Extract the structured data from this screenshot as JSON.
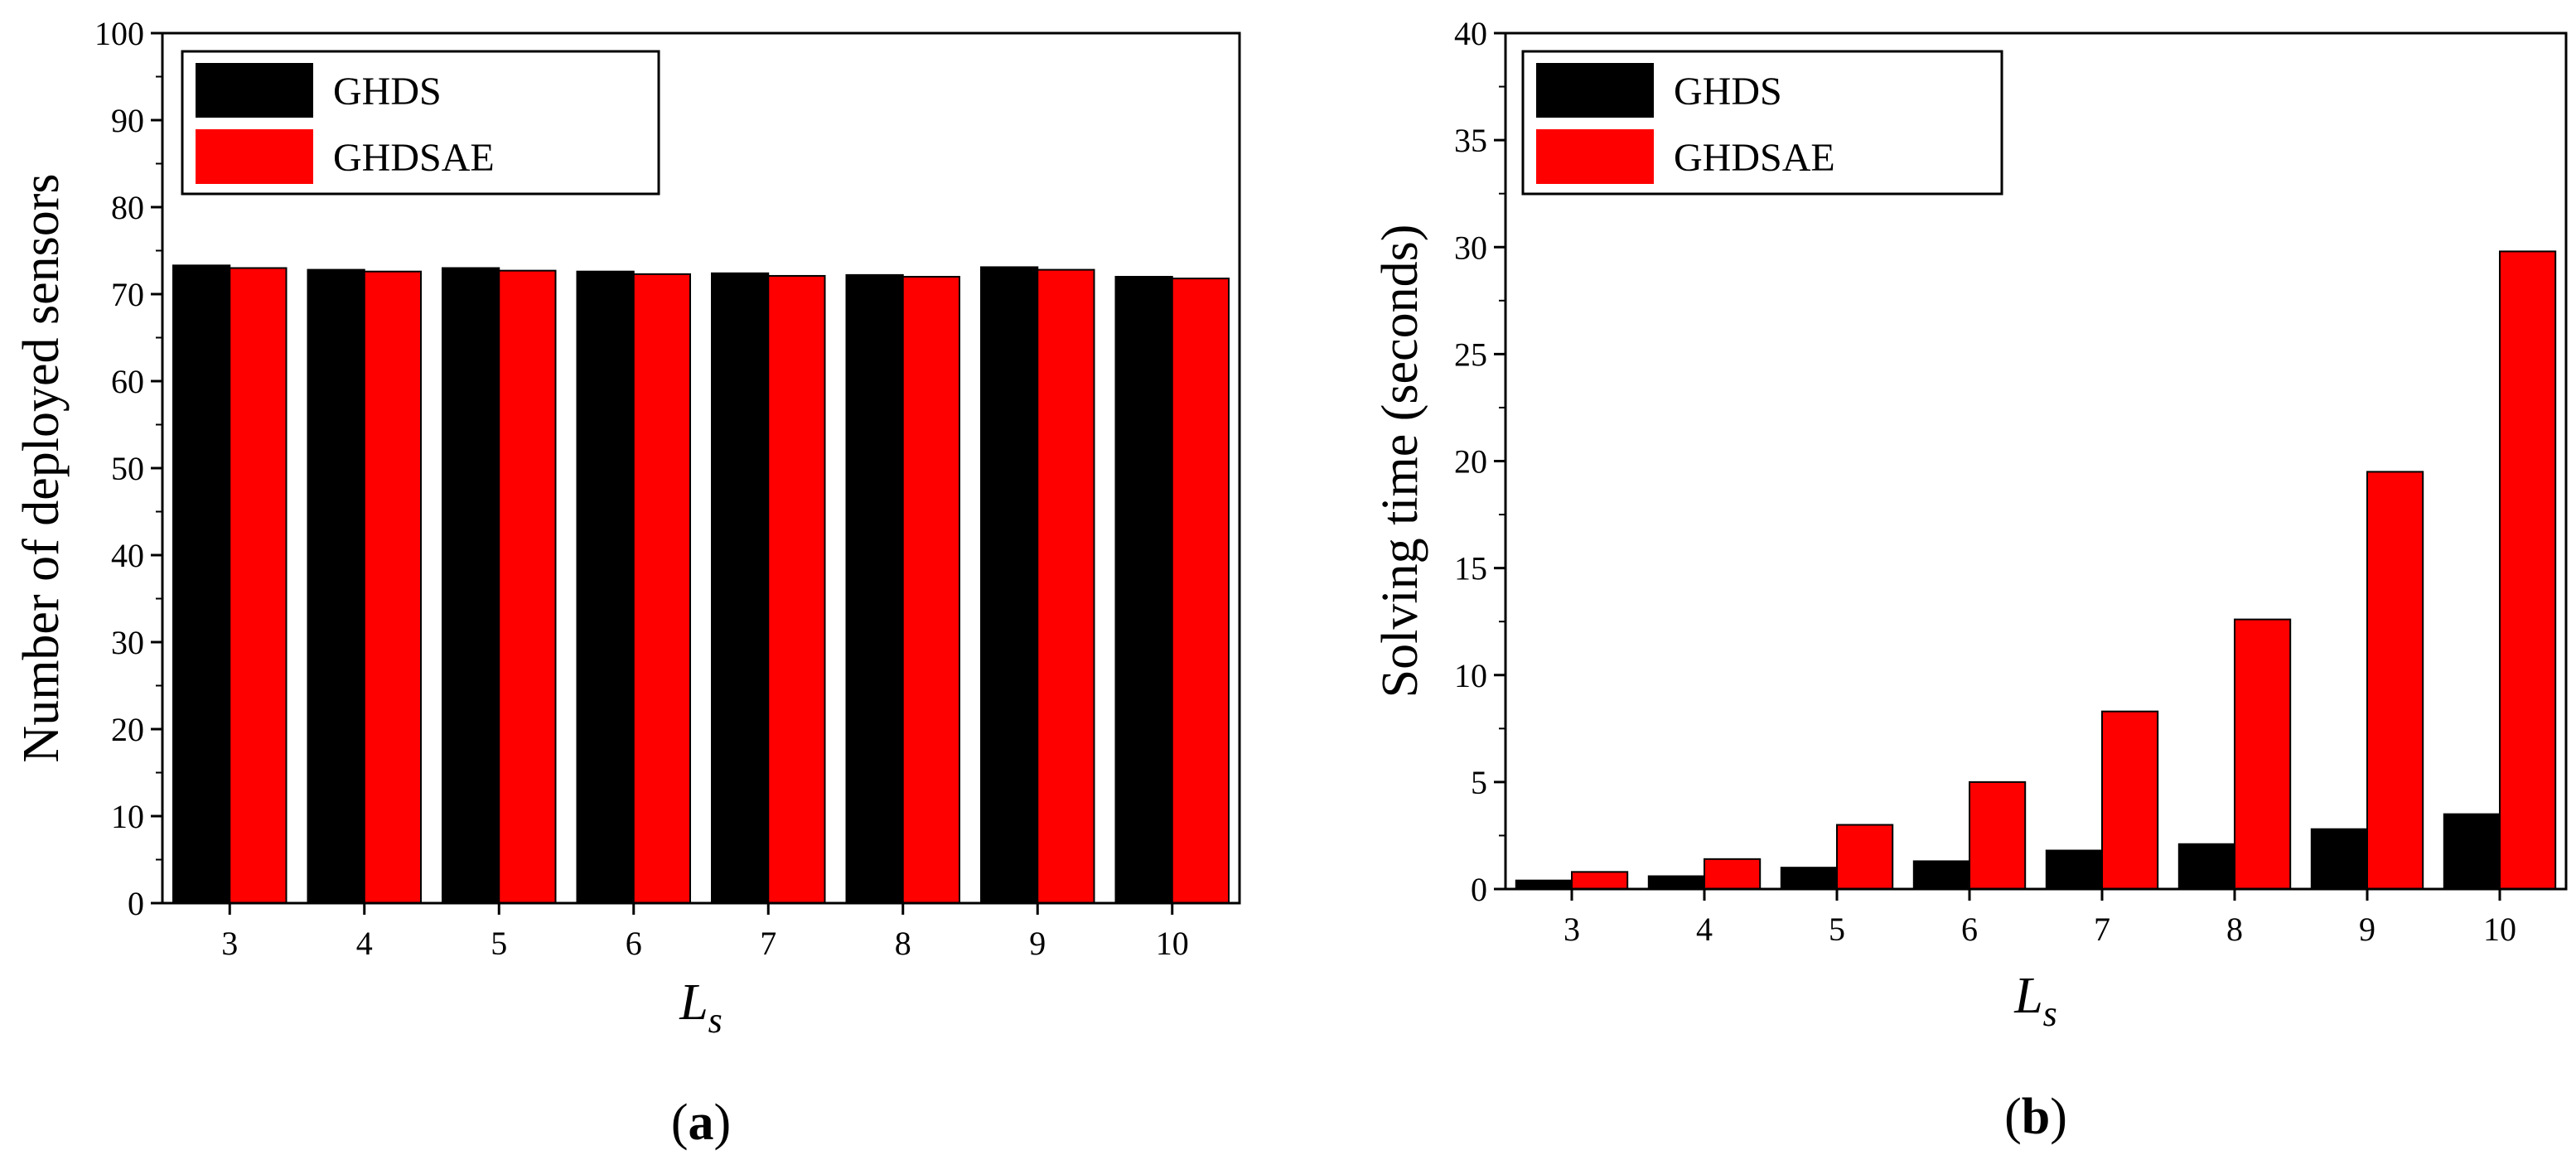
{
  "panels": [
    {
      "label_open": "(",
      "label_letter": "a",
      "label_close": ")"
    },
    {
      "label_open": "(",
      "label_letter": "b",
      "label_close": ")"
    }
  ],
  "chart_data": [
    {
      "type": "bar",
      "title": "",
      "xlabel_main": "L",
      "xlabel_sub": "s",
      "ylabel": "Number of deployed sensors",
      "categories": [
        "3",
        "4",
        "5",
        "6",
        "7",
        "8",
        "9",
        "10"
      ],
      "ylim": [
        0,
        100
      ],
      "yticks": [
        0,
        10,
        20,
        30,
        40,
        50,
        60,
        70,
        80,
        90,
        100
      ],
      "legend_position": "top-left",
      "series": [
        {
          "name": "GHDS",
          "color": "#000000",
          "values": [
            73.3,
            72.8,
            73.0,
            72.6,
            72.4,
            72.2,
            73.1,
            72.0
          ]
        },
        {
          "name": "GHDSAE",
          "color": "#ff0000",
          "values": [
            73.0,
            72.6,
            72.7,
            72.3,
            72.1,
            72.0,
            72.8,
            71.8
          ]
        }
      ]
    },
    {
      "type": "bar",
      "title": "",
      "xlabel_main": "L",
      "xlabel_sub": "s",
      "ylabel": "Solving time (seconds)",
      "categories": [
        "3",
        "4",
        "5",
        "6",
        "7",
        "8",
        "9",
        "10"
      ],
      "ylim": [
        0,
        40
      ],
      "yticks": [
        0,
        5,
        10,
        15,
        20,
        25,
        30,
        35,
        40
      ],
      "legend_position": "top-left",
      "series": [
        {
          "name": "GHDS",
          "color": "#000000",
          "values": [
            0.4,
            0.6,
            1.0,
            1.3,
            1.8,
            2.1,
            2.8,
            3.5
          ]
        },
        {
          "name": "GHDSAE",
          "color": "#ff0000",
          "values": [
            0.8,
            1.4,
            3.0,
            5.0,
            8.3,
            12.6,
            19.5,
            29.8
          ]
        }
      ]
    }
  ]
}
